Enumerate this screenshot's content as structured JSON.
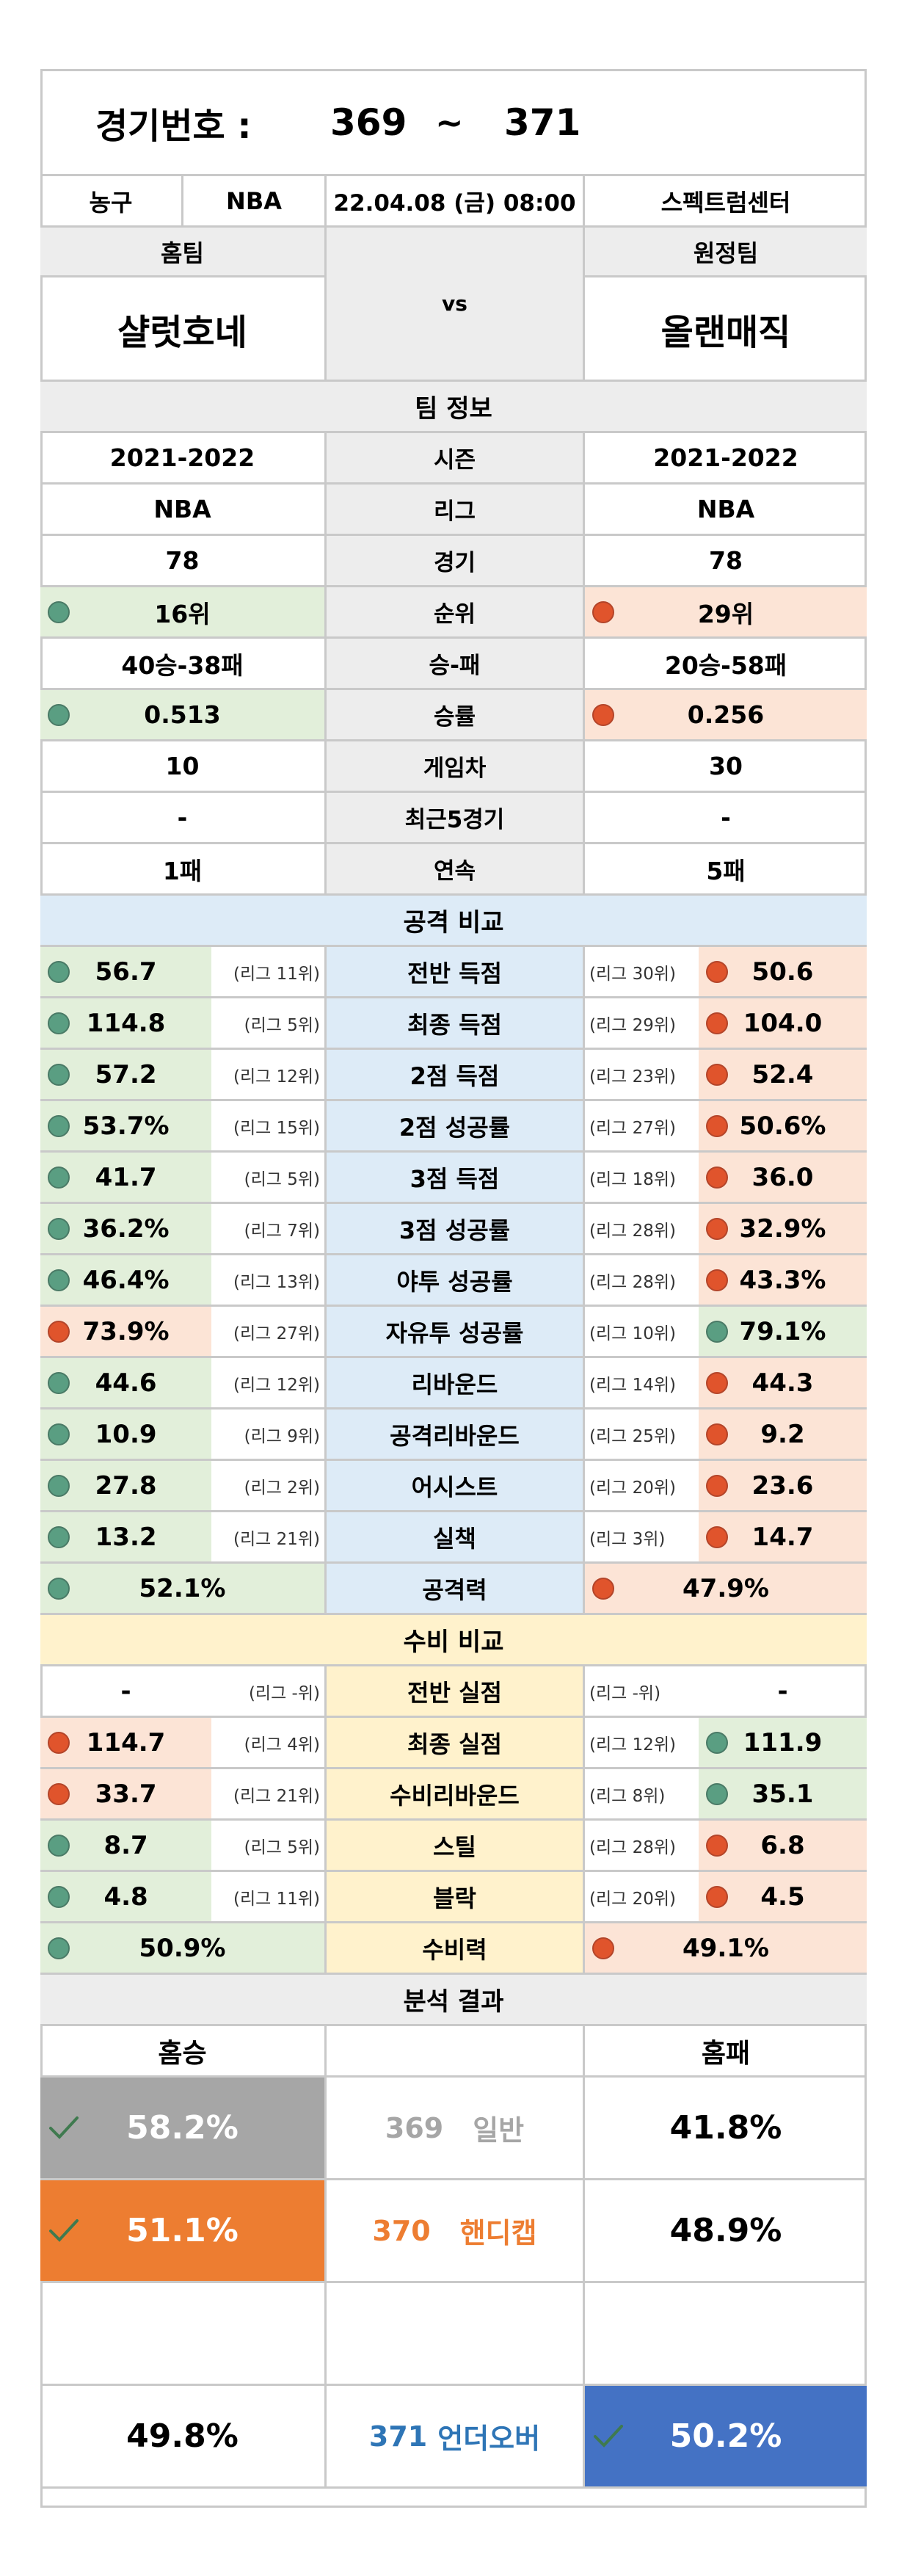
{
  "header": {
    "label": "경기번호 :",
    "from": "369",
    "tilde": "~",
    "to": "371"
  },
  "info": {
    "sport": "농구",
    "league": "NBA",
    "datetime": "22.04.08 (금) 08:00",
    "venue": "스펙트럼센터"
  },
  "teams": {
    "home_label": "홈팀",
    "away_label": "원정팀",
    "home": "샬럿호네",
    "away": "올랜매직",
    "vs": "vs"
  },
  "sections": {
    "team_info": "팀 정보",
    "attack": "공격 비교",
    "defense": "수비 비교",
    "result": "분석 결과"
  },
  "team_info": [
    {
      "label": "시즌",
      "home": "2021-2022",
      "away": "2021-2022",
      "hs": "",
      "as": ""
    },
    {
      "label": "리그",
      "home": "NBA",
      "away": "NBA",
      "hs": "",
      "as": ""
    },
    {
      "label": "경기",
      "home": "78",
      "away": "78",
      "hs": "",
      "as": ""
    },
    {
      "label": "순위",
      "home": "16위",
      "away": "29위",
      "hs": "g",
      "as": "r"
    },
    {
      "label": "승-패",
      "home": "40승-38패",
      "away": "20승-58패",
      "hs": "",
      "as": ""
    },
    {
      "label": "승률",
      "home": "0.513",
      "away": "0.256",
      "hs": "g",
      "as": "r"
    },
    {
      "label": "게임차",
      "home": "10",
      "away": "30",
      "hs": "",
      "as": ""
    },
    {
      "label": "최근5경기",
      "home": "-",
      "away": "-",
      "hs": "",
      "as": ""
    },
    {
      "label": "연속",
      "home": "1패",
      "away": "5패",
      "hs": "",
      "as": ""
    }
  ],
  "attack": [
    {
      "label": "전반 득점",
      "home": "56.7",
      "home_rank": "(리그 11위)",
      "away": "50.6",
      "away_rank": "(리그 30위)",
      "hs": "g",
      "as": "r"
    },
    {
      "label": "최종 득점",
      "home": "114.8",
      "home_rank": "(리그 5위)",
      "away": "104.0",
      "away_rank": "(리그 29위)",
      "hs": "g",
      "as": "r"
    },
    {
      "label": "2점 득점",
      "home": "57.2",
      "home_rank": "(리그 12위)",
      "away": "52.4",
      "away_rank": "(리그 23위)",
      "hs": "g",
      "as": "r"
    },
    {
      "label": "2점 성공률",
      "home": "53.7%",
      "home_rank": "(리그 15위)",
      "away": "50.6%",
      "away_rank": "(리그 27위)",
      "hs": "g",
      "as": "r"
    },
    {
      "label": "3점 득점",
      "home": "41.7",
      "home_rank": "(리그 5위)",
      "away": "36.0",
      "away_rank": "(리그 18위)",
      "hs": "g",
      "as": "r"
    },
    {
      "label": "3점 성공률",
      "home": "36.2%",
      "home_rank": "(리그 7위)",
      "away": "32.9%",
      "away_rank": "(리그 28위)",
      "hs": "g",
      "as": "r"
    },
    {
      "label": "야투 성공률",
      "home": "46.4%",
      "home_rank": "(리그 13위)",
      "away": "43.3%",
      "away_rank": "(리그 28위)",
      "hs": "g",
      "as": "r"
    },
    {
      "label": "자유투 성공률",
      "home": "73.9%",
      "home_rank": "(리그 27위)",
      "away": "79.1%",
      "away_rank": "(리그 10위)",
      "hs": "r",
      "as": "g"
    },
    {
      "label": "리바운드",
      "home": "44.6",
      "home_rank": "(리그 12위)",
      "away": "44.3",
      "away_rank": "(리그 14위)",
      "hs": "g",
      "as": "r"
    },
    {
      "label": "공격리바운드",
      "home": "10.9",
      "home_rank": "(리그 9위)",
      "away": "9.2",
      "away_rank": "(리그 25위)",
      "hs": "g",
      "as": "r"
    },
    {
      "label": "어시스트",
      "home": "27.8",
      "home_rank": "(리그 2위)",
      "away": "23.6",
      "away_rank": "(리그 20위)",
      "hs": "g",
      "as": "r"
    },
    {
      "label": "실책",
      "home": "13.2",
      "home_rank": "(리그 21위)",
      "away": "14.7",
      "away_rank": "(리그 3위)",
      "hs": "g",
      "as": "r"
    }
  ],
  "attack_power": {
    "label": "공격력",
    "home": "52.1%",
    "away": "47.9%",
    "hs": "g",
    "as": "r"
  },
  "defense": [
    {
      "label": "전반 실점",
      "home": "-",
      "home_rank": "(리그 -위)",
      "away": "-",
      "away_rank": "(리그 -위)",
      "hs": "",
      "as": ""
    },
    {
      "label": "최종 실점",
      "home": "114.7",
      "home_rank": "(리그 4위)",
      "away": "111.9",
      "away_rank": "(리그 12위)",
      "hs": "r",
      "as": "g"
    },
    {
      "label": "수비리바운드",
      "home": "33.7",
      "home_rank": "(리그 21위)",
      "away": "35.1",
      "away_rank": "(리그 8위)",
      "hs": "r",
      "as": "g"
    },
    {
      "label": "스틸",
      "home": "8.7",
      "home_rank": "(리그 5위)",
      "away": "6.8",
      "away_rank": "(리그 28위)",
      "hs": "g",
      "as": "r"
    },
    {
      "label": "블락",
      "home": "4.8",
      "home_rank": "(리그 11위)",
      "away": "4.5",
      "away_rank": "(리그 20위)",
      "hs": "g",
      "as": "r"
    }
  ],
  "defense_power": {
    "label": "수비력",
    "home": "50.9%",
    "away": "49.1%",
    "hs": "g",
    "as": "r"
  },
  "result": {
    "home_header": "홈승",
    "away_header": "홈패",
    "rows": [
      {
        "num": "369",
        "name": "일반",
        "home": "58.2%",
        "away": "41.8%",
        "color": "#a6a6a6",
        "pick": "home"
      },
      {
        "num": "370",
        "name": "핸디캡",
        "home": "51.1%",
        "away": "48.9%",
        "color": "#ed7d31",
        "pick": "home"
      },
      {
        "num": "371",
        "name": "언더오버",
        "home": "49.8%",
        "away": "50.2%",
        "color": "#4472c4",
        "pick": "away"
      }
    ]
  },
  "colors": {
    "border": "#c9c9c9",
    "green": "#e2efda",
    "red": "#fce4d6",
    "blue": "#ddebf7",
    "yellow": "#fff2cc",
    "gray": "#ededed",
    "dot_green": "#5a9e82",
    "dot_red": "#e0542c"
  }
}
